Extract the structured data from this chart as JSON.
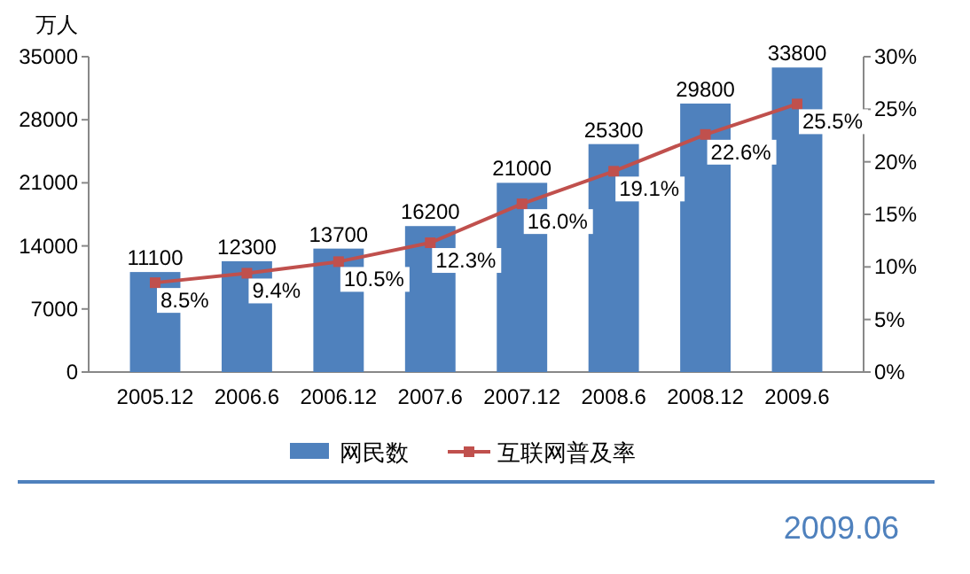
{
  "chart_data": {
    "type": "bar",
    "ylabel": "万人",
    "categories": [
      "2005.12",
      "2006.6",
      "2006.12",
      "2007.6",
      "2007.12",
      "2008.6",
      "2008.12",
      "2009.6"
    ],
    "series": [
      {
        "name": "网民数",
        "color": "#4f81bd",
        "values": [
          11100,
          12300,
          13700,
          16200,
          21000,
          25300,
          29800,
          33800
        ],
        "value_labels": [
          "11100",
          "12300",
          "13700",
          "16200",
          "21000",
          "25300",
          "29800",
          "33800"
        ]
      },
      {
        "name": "互联网普及率",
        "type": "line",
        "axis": "y2",
        "color": "#c0504d",
        "marker": "square",
        "values": [
          8.5,
          9.4,
          10.5,
          12.3,
          16.0,
          19.1,
          22.6,
          25.5
        ],
        "value_labels": [
          "8.5%",
          "9.4%",
          "10.5%",
          "12.3%",
          "16.0%",
          "19.1%",
          "22.6%",
          "25.5%"
        ]
      }
    ],
    "ylim": [
      0,
      35000
    ],
    "yticks": [
      0,
      7000,
      14000,
      21000,
      28000,
      35000
    ],
    "y2lim": [
      0,
      30
    ],
    "y2ticks": [
      {
        "value": 0,
        "label": "0%"
      },
      {
        "value": 5,
        "label": "5%"
      },
      {
        "value": 10,
        "label": "10%"
      },
      {
        "value": 15,
        "label": "15%"
      },
      {
        "value": 20,
        "label": "20%"
      },
      {
        "value": 25,
        "label": "25%"
      },
      {
        "value": 30,
        "label": "30%"
      }
    ],
    "legend": "bottom",
    "annotations": [
      "2009.06"
    ]
  }
}
